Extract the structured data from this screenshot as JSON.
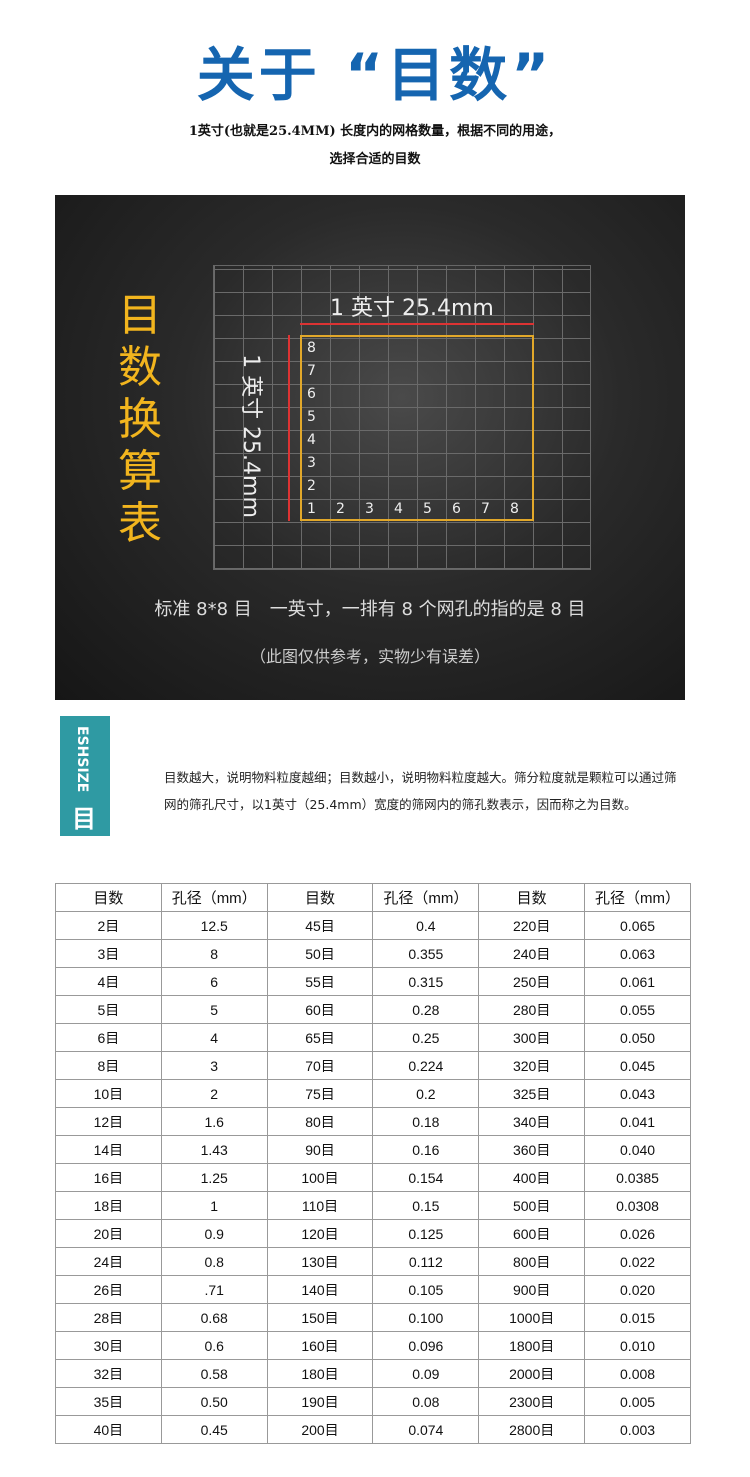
{
  "header": {
    "title": "关于 “目数”",
    "sub1": "1英寸(也就是25.4MM) 长度内的网格数量，根据不同的用途，",
    "sub2": "选择合适的目数"
  },
  "diagram": {
    "side_title": "目数换算表",
    "h_label": "1 英寸 25.4mm",
    "v_label": "1 英寸 25.4mm",
    "counts": [
      "1",
      "2",
      "3",
      "4",
      "5",
      "6",
      "7",
      "8"
    ],
    "caption": "标准 8*8 目　一英寸，一排有 8 个网孔的指的是 8 目",
    "note": "（此图仅供参考，实物少有误差）",
    "accent": "#f2b51e"
  },
  "badge": {
    "en": "ESHSIZE",
    "cn": "目",
    "color": "#2f9aa3"
  },
  "description": "目数越大，说明物料粒度越细；目数越小，说明物料粒度越大。筛分粒度就是颗粒可以通过筛网的筛孔尺寸，以1英寸（25.4mm）宽度的筛网内的筛孔数表示，因而称之为目数。",
  "table": {
    "headers": [
      "目数",
      "孔径（mm）",
      "目数",
      "孔径（mm）",
      "目数",
      "孔径（mm）"
    ],
    "rows": [
      [
        "2目",
        "12.5",
        "45目",
        "0.4",
        "220目",
        "0.065"
      ],
      [
        "3目",
        "8",
        "50目",
        "0.355",
        "240目",
        "0.063"
      ],
      [
        "4目",
        "6",
        "55目",
        "0.315",
        "250目",
        "0.061"
      ],
      [
        "5目",
        "5",
        "60目",
        "0.28",
        "280目",
        "0.055"
      ],
      [
        "6目",
        "4",
        "65目",
        "0.25",
        "300目",
        "0.050"
      ],
      [
        "8目",
        "3",
        "70目",
        "0.224",
        "320目",
        "0.045"
      ],
      [
        "10目",
        "2",
        "75目",
        "0.2",
        "325目",
        "0.043"
      ],
      [
        "12目",
        "1.6",
        "80目",
        "0.18",
        "340目",
        "0.041"
      ],
      [
        "14目",
        "1.43",
        "90目",
        "0.16",
        "360目",
        "0.040"
      ],
      [
        "16目",
        "1.25",
        "100目",
        "0.154",
        "400目",
        "0.0385"
      ],
      [
        "18目",
        "1",
        "110目",
        "0.15",
        "500目",
        "0.0308"
      ],
      [
        "20目",
        "0.9",
        "120目",
        "0.125",
        "600目",
        "0.026"
      ],
      [
        "24目",
        "0.8",
        "130目",
        "0.112",
        "800目",
        "0.022"
      ],
      [
        "26目",
        ".71",
        "140目",
        "0.105",
        "900目",
        "0.020"
      ],
      [
        "28目",
        "0.68",
        "150目",
        "0.100",
        "1000目",
        "0.015"
      ],
      [
        "30目",
        "0.6",
        "160目",
        "0.096",
        "1800目",
        "0.010"
      ],
      [
        "32目",
        "0.58",
        "180目",
        "0.09",
        "2000目",
        "0.008"
      ],
      [
        "35目",
        "0.50",
        "190目",
        "0.08",
        "2300目",
        "0.005"
      ],
      [
        "40目",
        "0.45",
        "200目",
        "0.074",
        "2800目",
        "0.003"
      ]
    ]
  }
}
